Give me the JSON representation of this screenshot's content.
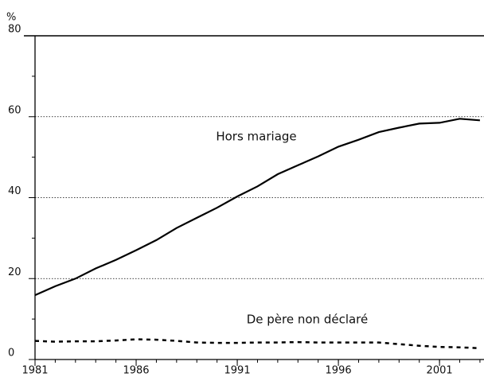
{
  "chart_data": {
    "type": "line",
    "y_label": "%",
    "x": [
      1981,
      1982,
      1983,
      1984,
      1985,
      1986,
      1987,
      1988,
      1989,
      1990,
      1991,
      1992,
      1993,
      1994,
      1995,
      1996,
      1997,
      1998,
      1999,
      2000,
      2001,
      2002,
      2003
    ],
    "series": [
      {
        "name": "Hors mariage",
        "color": "#000000",
        "dash": false,
        "values": [
          15.9,
          18.1,
          20.0,
          22.5,
          24.6,
          27.0,
          29.5,
          32.5,
          35.0,
          37.5,
          40.3,
          42.8,
          45.8,
          48.0,
          50.2,
          52.6,
          54.3,
          56.2,
          57.3,
          58.3,
          58.5,
          59.5,
          59.1
        ]
      },
      {
        "name": "De père non déclaré",
        "color": "#000000",
        "dash": true,
        "values": [
          4.6,
          4.4,
          4.5,
          4.5,
          4.7,
          5.0,
          4.9,
          4.6,
          4.2,
          4.1,
          4.1,
          4.2,
          4.2,
          4.3,
          4.2,
          4.2,
          4.2,
          4.2,
          3.8,
          3.4,
          3.1,
          3.0,
          2.8
        ]
      }
    ],
    "xlim": [
      1981,
      2003.2
    ],
    "xticks": [
      1981,
      1986,
      1991,
      1996,
      2001
    ],
    "ylim": [
      0,
      80
    ],
    "yticks": [
      0,
      20,
      40,
      60,
      80
    ],
    "yminorticks": [
      10,
      30,
      50,
      70
    ],
    "grid": true
  }
}
